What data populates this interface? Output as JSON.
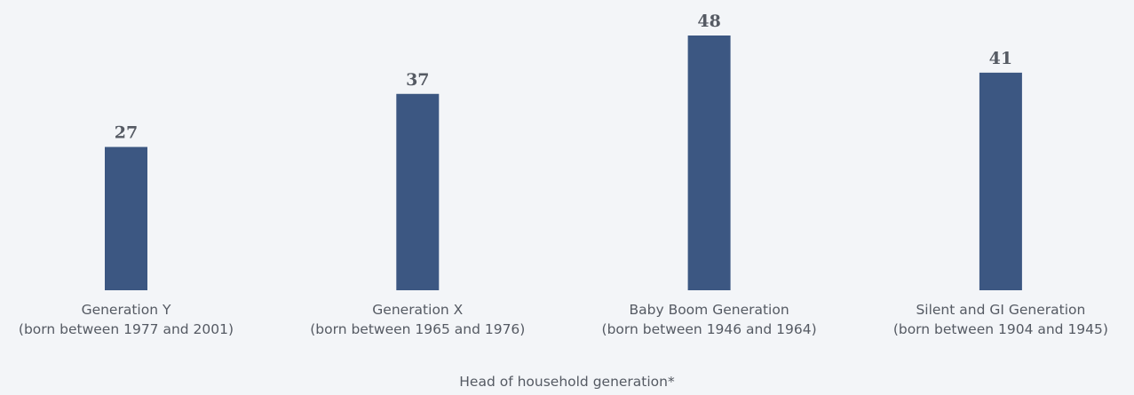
{
  "chart_data": {
    "type": "bar",
    "categories": [
      "Generation Y\n(born between 1977 and 2001)",
      "Generation X\n(born between 1965 and 1976)",
      "Baby Boom Generation\n(born between 1946 and 1964)",
      "Silent and GI Generation\n(born between 1904 and 1945)"
    ],
    "values": [
      27,
      37,
      48,
      41
    ],
    "color": "#3c5782",
    "x_label": "Head of household generation*"
  }
}
